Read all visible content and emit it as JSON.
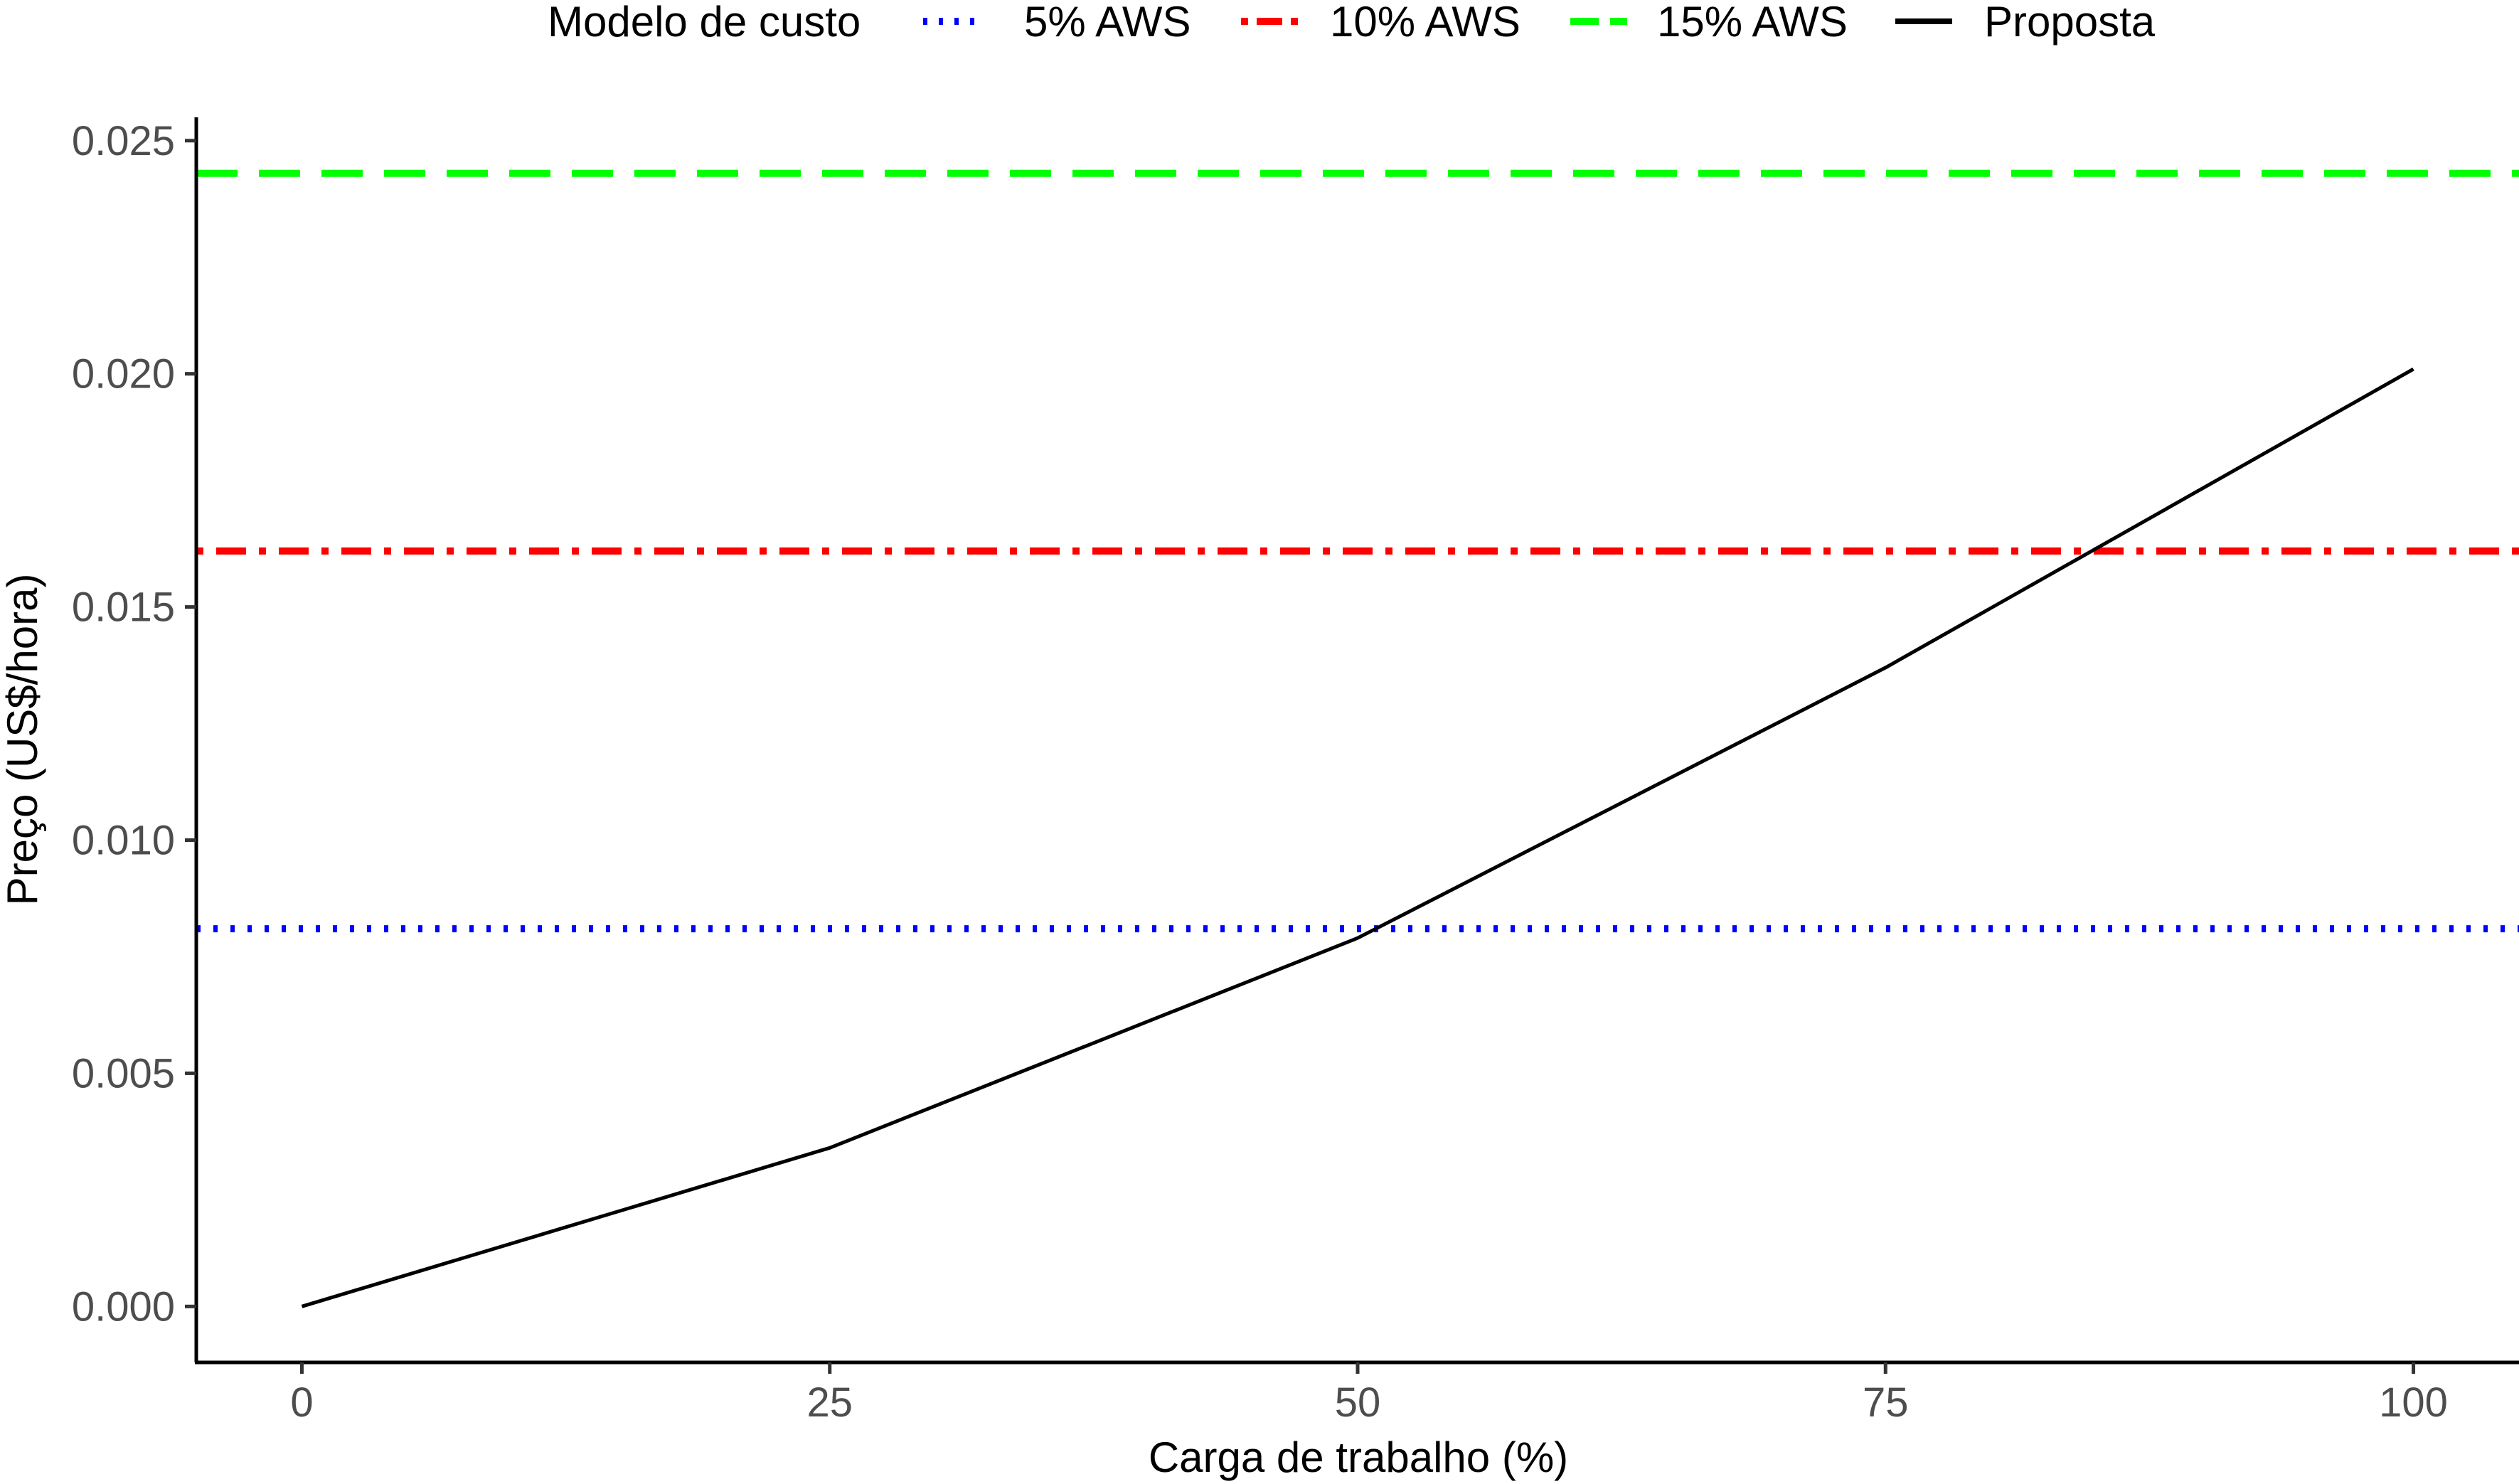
{
  "chart_data": {
    "type": "line",
    "title": "",
    "xlabel": "Carga de trabalho (%)",
    "ylabel": "Preço (US$/hora)",
    "xlim": [
      -5,
      105
    ],
    "ylim": [
      -0.0012,
      0.0255
    ],
    "x_ticks": [
      0,
      25,
      50,
      75,
      100
    ],
    "x_tick_labels": [
      "0",
      "25",
      "50",
      "75",
      "100"
    ],
    "y_ticks": [
      0,
      0.005,
      0.01,
      0.015,
      0.02,
      0.025
    ],
    "y_tick_labels": [
      "0.000",
      "0.005",
      "0.010",
      "0.015",
      "0.020",
      "0.025"
    ],
    "grid": false,
    "legend": {
      "title": "Modelo de custo",
      "position": "top"
    },
    "series": [
      {
        "name": "5% AWS",
        "kind": "hline",
        "y": 0.0081,
        "color": "#0000ff",
        "linetype": "dotted"
      },
      {
        "name": "10% AWS",
        "kind": "hline",
        "y": 0.0162,
        "color": "#ff0000",
        "linetype": "dotdash"
      },
      {
        "name": "15% AWS",
        "kind": "hline",
        "y": 0.0243,
        "color": "#00ff00",
        "linetype": "dashed"
      },
      {
        "name": "Proposta",
        "kind": "line",
        "x": [
          0,
          25,
          50,
          75,
          100
        ],
        "y": [
          0.0,
          0.0034,
          0.0079,
          0.0137,
          0.0201
        ],
        "color": "#000000",
        "linetype": "solid"
      }
    ]
  }
}
